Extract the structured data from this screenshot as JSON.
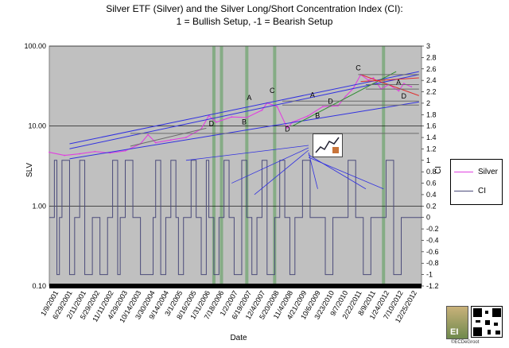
{
  "chart_data": {
    "type": "line",
    "title": "Silver ETF (Silver) and the Silver Long/Short Concentration Index (CI):",
    "subtitle": "1 = Bullish Setup, -1 = Bearish Setup",
    "xlabel": "Date",
    "ylabel_left": "SLV",
    "ylabel_right": "CI",
    "y_left_scale": "log",
    "y_left_range": [
      0.1,
      100
    ],
    "y_left_ticks": [
      "100.00",
      "10.00",
      "1.00",
      "0.10"
    ],
    "y_right_range": [
      -1.2,
      3.0
    ],
    "y_right_ticks": [
      "3",
      "2.8",
      "2.6",
      "2.4",
      "2.2",
      "2",
      "1.8",
      "1.6",
      "1.4",
      "1.2",
      "1",
      "0.8",
      "0.6",
      "0.4",
      "0.2",
      "0",
      "-0.2",
      "-0.4",
      "-0.6",
      "-0.8",
      "-1",
      "-1.2"
    ],
    "x_ticks": [
      "1/9/2001",
      "6/29/2001",
      "2/11/2001",
      "5/29/2002",
      "11/11/2002",
      "4/29/2003",
      "10/14/2003",
      "3/30/2004",
      "9/14/2004",
      "3/1/2005",
      "8/16/2005",
      "1/31/2006",
      "7/18/2006",
      "1/2/2007",
      "6/19/2007",
      "12/4/2007",
      "5/20/2008",
      "11/4/2008",
      "4/21/2009",
      "10/6/2009",
      "3/23/2010",
      "9/7/2010",
      "2/22/2011",
      "8/9/2011",
      "1/24/2012",
      "7/10/2012",
      "12/25/2012"
    ],
    "legend_position": "right",
    "series": [
      {
        "name": "Silver",
        "color": "#e040e0",
        "x": [
          "2001-01",
          "2001-07",
          "2002-01",
          "2002-07",
          "2003-01",
          "2003-07",
          "2004-01",
          "2004-04",
          "2004-07",
          "2005-01",
          "2005-07",
          "2006-01",
          "2006-04",
          "2006-07",
          "2007-01",
          "2007-07",
          "2008-01",
          "2008-03",
          "2008-07",
          "2008-11",
          "2009-01",
          "2009-07",
          "2010-01",
          "2010-07",
          "2010-10",
          "2011-01",
          "2011-04",
          "2011-07",
          "2011-09",
          "2011-12",
          "2012-03",
          "2012-07",
          "2012-09",
          "2012-12"
        ],
        "values": [
          4.7,
          4.3,
          4.5,
          4.8,
          4.6,
          4.9,
          6.0,
          7.8,
          6.2,
          6.7,
          7.2,
          9.2,
          13.5,
          11.2,
          13.0,
          12.8,
          15.8,
          19.5,
          17.5,
          9.4,
          11.2,
          13.3,
          17.5,
          17.9,
          23.5,
          29.5,
          44.0,
          37.5,
          40.0,
          29.0,
          33.0,
          27.5,
          34.0,
          31.0
        ]
      },
      {
        "name": "CI",
        "color": "#4b4b7a",
        "x": [
          "2001-01",
          "2001-03",
          "2001-04",
          "2001-05",
          "2001-06",
          "2001-09",
          "2001-11",
          "2002-01",
          "2002-03",
          "2002-06",
          "2002-09",
          "2002-12",
          "2003-02",
          "2003-04",
          "2003-05",
          "2003-07",
          "2003-10",
          "2004-01",
          "2004-06",
          "2004-07",
          "2004-09",
          "2004-11",
          "2005-01",
          "2005-03",
          "2005-04",
          "2005-06",
          "2005-09",
          "2005-11",
          "2006-01",
          "2006-03",
          "2006-04",
          "2006-06",
          "2006-08",
          "2006-10",
          "2006-12",
          "2007-02",
          "2007-05",
          "2007-07",
          "2007-09",
          "2007-11",
          "2008-01",
          "2008-03",
          "2008-06",
          "2008-08",
          "2008-10",
          "2008-12",
          "2009-02",
          "2009-05",
          "2009-08",
          "2009-11",
          "2010-02",
          "2010-05",
          "2010-08",
          "2010-11",
          "2011-02",
          "2011-05",
          "2011-08",
          "2011-11",
          "2012-02",
          "2012-05",
          "2012-08",
          "2012-11",
          "2012-12"
        ],
        "values": [
          0,
          1,
          -1,
          0,
          1,
          -1,
          0,
          1,
          -1,
          0,
          -1,
          0,
          1,
          -1,
          0,
          1,
          0,
          -1,
          0,
          1,
          -1,
          0,
          1,
          0,
          -1,
          0,
          1,
          0,
          -1,
          1,
          0,
          -1,
          0,
          1,
          0,
          -1,
          1,
          0,
          -1,
          0,
          1,
          -1,
          0,
          1,
          0,
          -1,
          0,
          1,
          0,
          0,
          -1,
          0,
          0,
          1,
          0,
          -1,
          0,
          0,
          1,
          -1,
          0,
          0,
          0
        ]
      }
    ],
    "highlight_bands": [
      "2006-06",
      "2006-09",
      "2007-07",
      "2008-06",
      "2012-01"
    ],
    "annotations": [
      "A",
      "A",
      "A",
      "B",
      "B",
      "C",
      "C",
      "D",
      "D",
      "D",
      "D"
    ]
  },
  "legend": {
    "silver": "Silver",
    "ci": "CI"
  },
  "footer": {
    "logo_text": "EI",
    "credit": "©ECDeGroot"
  },
  "icons": {
    "badge": "chart-thumbnail-icon",
    "logo": "ei-logo-icon",
    "qr": "qr-code-icon"
  }
}
